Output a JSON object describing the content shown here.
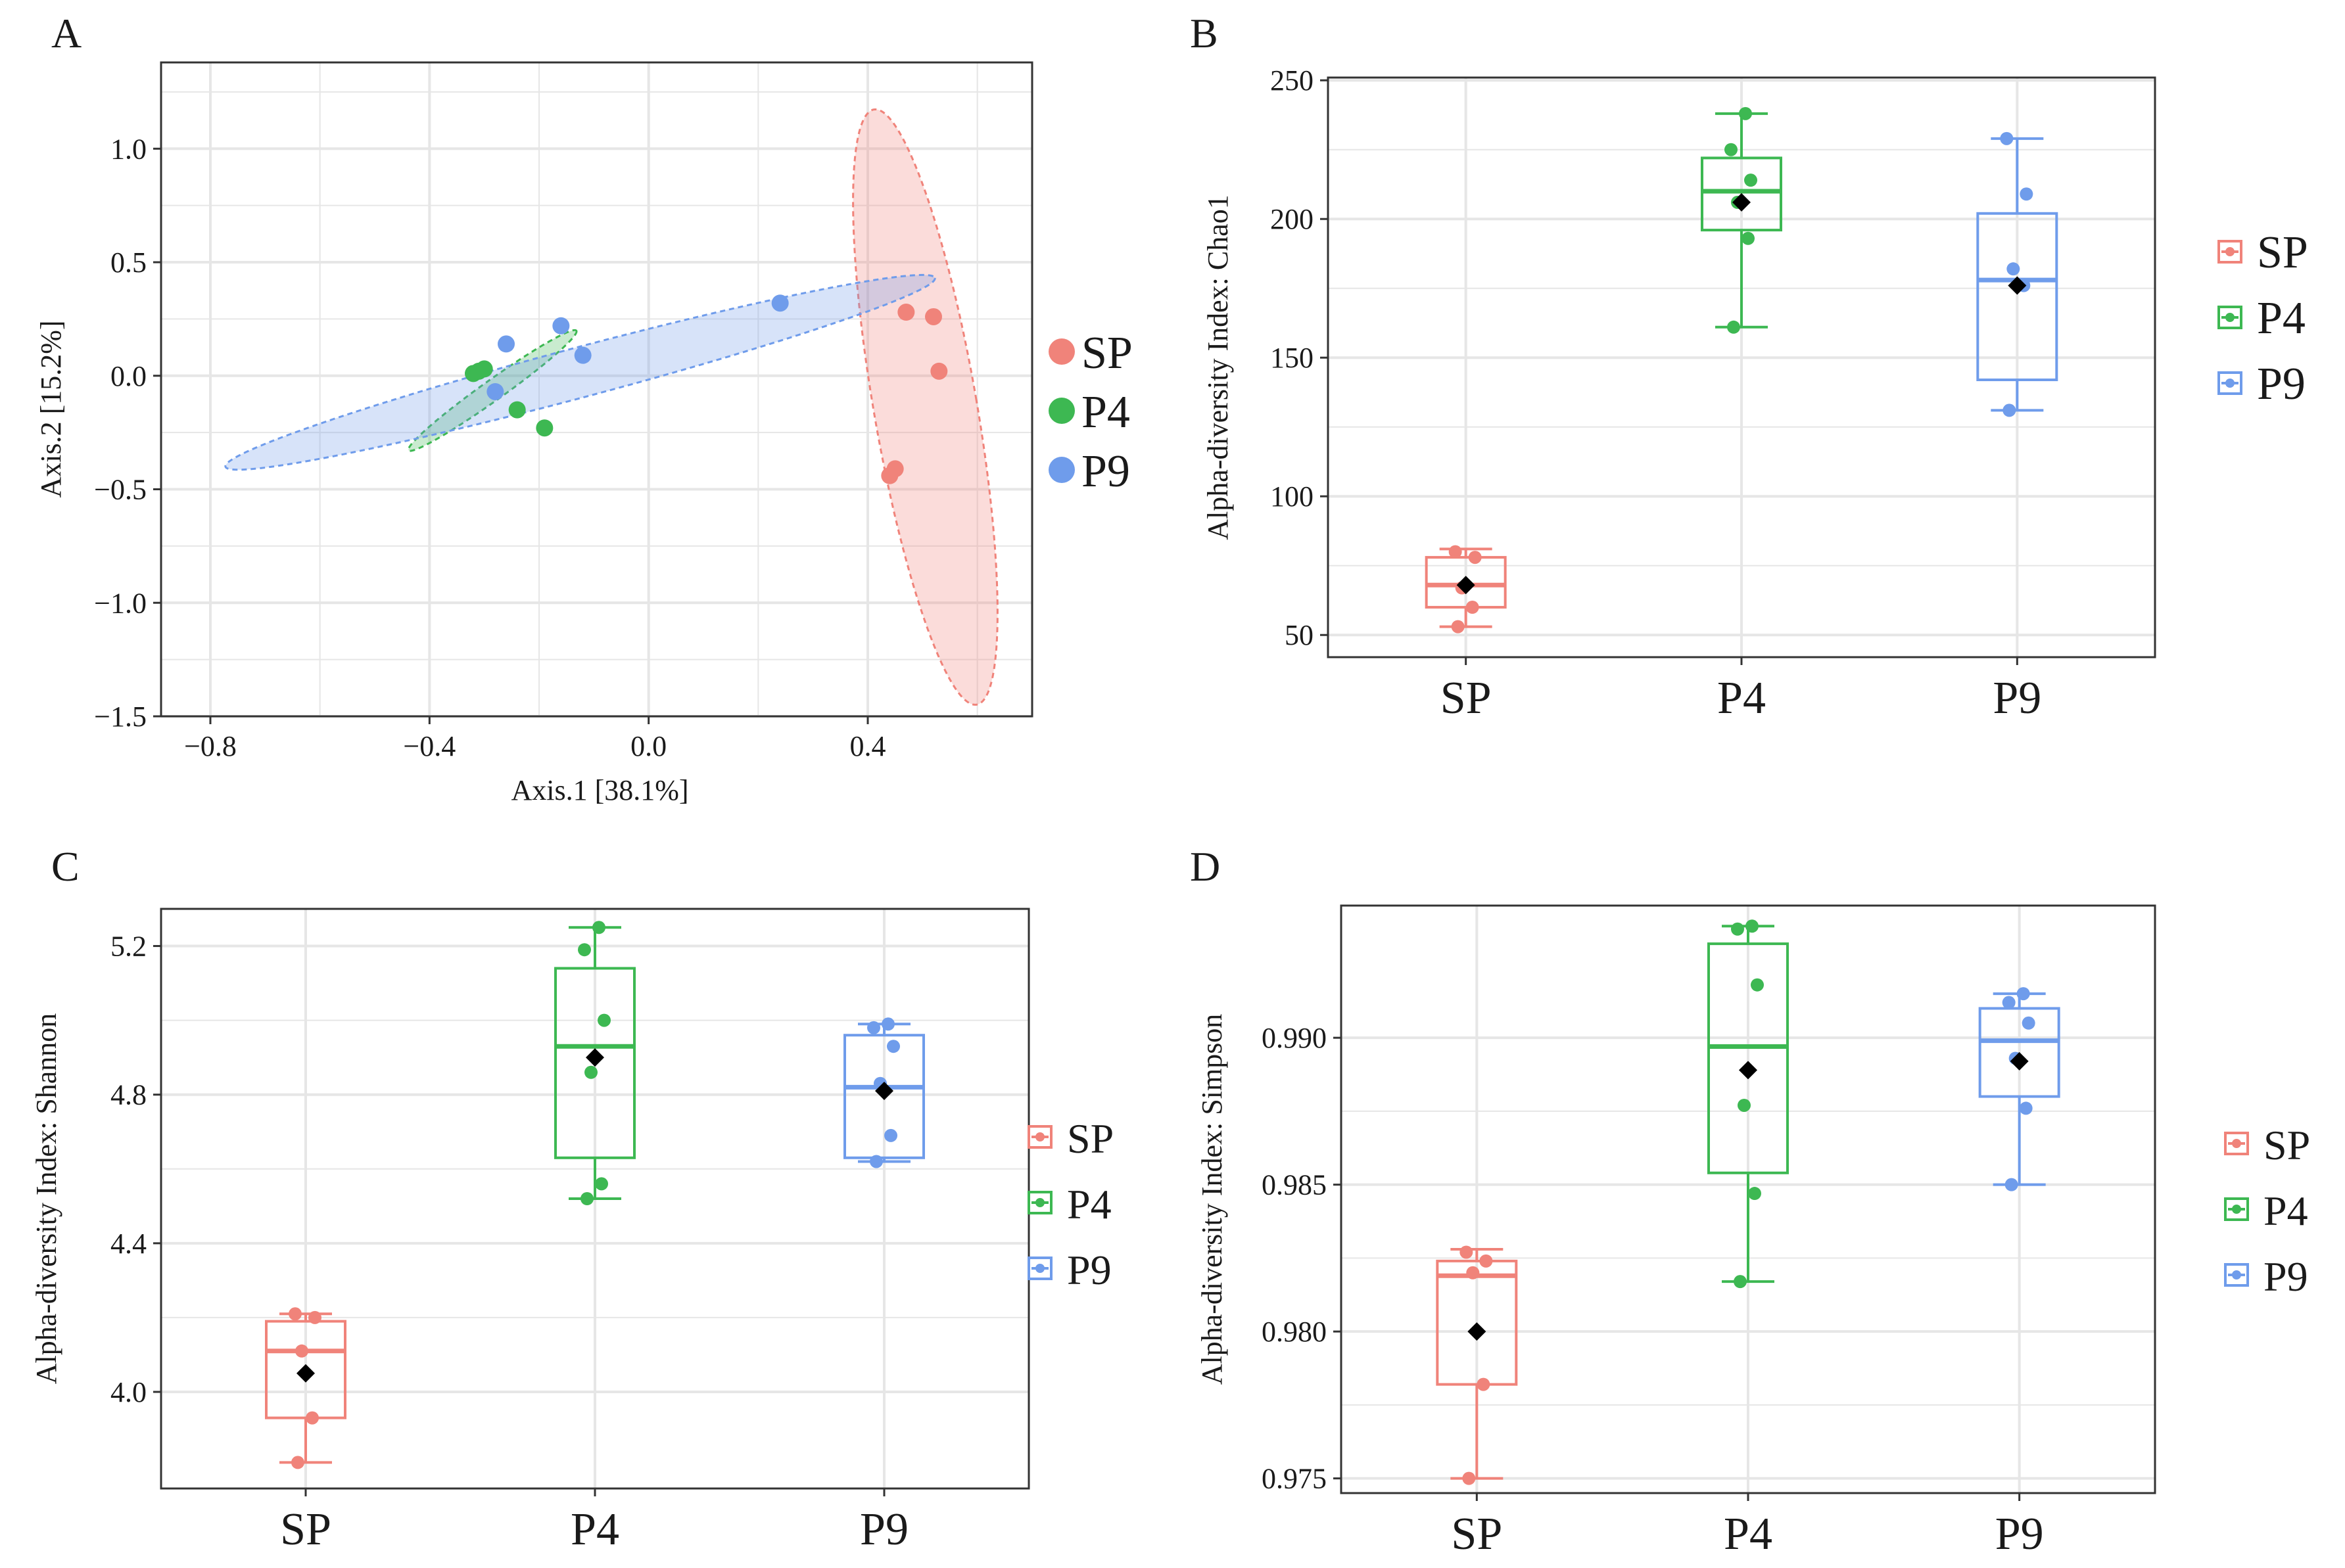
{
  "figure": {
    "background": "#ffffff",
    "grid_color": "#e6e6e6",
    "frame_color": "#333333"
  },
  "groups": [
    {
      "name": "SP",
      "color": "#F0837A"
    },
    {
      "name": "P4",
      "color": "#3DB852"
    },
    {
      "name": "P9",
      "color": "#6F9CEB"
    }
  ],
  "chart_data": [
    {
      "panel": "A",
      "type": "scatter",
      "title": "",
      "xlabel": "Axis.1  [38.1%]",
      "ylabel": "Axis.2  [15.2%]",
      "xlim": [
        -0.89,
        0.7
      ],
      "ylim": [
        -1.5,
        1.38
      ],
      "xticks": [
        -0.8,
        -0.4,
        0.0,
        0.4
      ],
      "xtick_labels": [
        "−0.8",
        "−0.4",
        "0.0",
        "0.4"
      ],
      "yticks": [
        1.0,
        0.5,
        0.0,
        -0.5,
        -1.0,
        -1.5
      ],
      "ytick_labels": [
        "1.0",
        "0.5",
        "0.0",
        "−0.5",
        "−1.0",
        "−1.5"
      ],
      "legend": [
        "SP",
        "P4",
        "P9"
      ],
      "legend_position": "right",
      "series": [
        {
          "name": "SP",
          "points": [
            [
              0.47,
              0.28
            ],
            [
              0.52,
              0.26
            ],
            [
              0.53,
              0.02
            ],
            [
              0.45,
              -0.41
            ],
            [
              0.44,
              -0.44
            ]
          ]
        },
        {
          "name": "P4",
          "points": [
            [
              -0.32,
              0.01
            ],
            [
              -0.31,
              0.02
            ],
            [
              -0.3,
              0.03
            ],
            [
              -0.24,
              -0.15
            ],
            [
              -0.19,
              -0.23
            ]
          ]
        },
        {
          "name": "P9",
          "points": [
            [
              0.24,
              0.32
            ],
            [
              -0.16,
              0.22
            ],
            [
              -0.26,
              0.14
            ],
            [
              -0.12,
              0.09
            ],
            [
              -0.28,
              -0.07
            ]
          ]
        }
      ],
      "ellipses": [
        {
          "name": "SP",
          "center": [
            0.505,
            -0.138
          ],
          "semi_axes": [
            0.094,
            1.33
          ],
          "rotation_deg": -9.8
        },
        {
          "name": "P4",
          "center": [
            -0.285,
            -0.065
          ],
          "semi_axes": [
            0.188,
            0.045
          ],
          "rotation_deg": -35.5
        },
        {
          "name": "P9",
          "center": [
            -0.125,
            0.015
          ],
          "semi_axes": [
            0.67,
            0.11
          ],
          "rotation_deg": -14.9
        }
      ]
    },
    {
      "panel": "B",
      "type": "box",
      "ylabel": "Alpha-diversity Index: Chao1",
      "categories": [
        "SP",
        "P4",
        "P9"
      ],
      "ylim": [
        42,
        251
      ],
      "yticks": [
        50,
        100,
        150,
        200,
        250
      ],
      "ytick_labels": [
        "50",
        "100",
        "150",
        "200",
        "250"
      ],
      "legend": [
        "SP",
        "P4",
        "P9"
      ],
      "legend_position": "right",
      "series": [
        {
          "name": "SP",
          "q1": 60,
          "median": 68,
          "q3": 78,
          "whisker_low": 53,
          "whisker_high": 81,
          "mean": 68,
          "points": [
            53,
            60,
            67,
            78,
            80
          ]
        },
        {
          "name": "P4",
          "q1": 196,
          "median": 210,
          "q3": 222,
          "whisker_low": 161,
          "whisker_high": 238,
          "mean": 206,
          "points": [
            161,
            193,
            206,
            214,
            225,
            238
          ]
        },
        {
          "name": "P9",
          "q1": 142,
          "median": 178,
          "q3": 202,
          "whisker_low": 131,
          "whisker_high": 229,
          "mean": 176,
          "points": [
            131,
            176,
            182,
            209,
            229
          ]
        }
      ]
    },
    {
      "panel": "C",
      "type": "box",
      "ylabel": "Alpha-diversity Index: Shannon",
      "categories": [
        "SP",
        "P4",
        "P9"
      ],
      "ylim": [
        3.74,
        5.3
      ],
      "yticks": [
        4.0,
        4.4,
        4.8,
        5.2
      ],
      "ytick_labels": [
        "4.0",
        "4.4",
        "4.8",
        "5.2"
      ],
      "legend": [
        "SP",
        "P4",
        "P9"
      ],
      "legend_position": "right",
      "series": [
        {
          "name": "SP",
          "q1": 3.93,
          "median": 4.11,
          "q3": 4.19,
          "whisker_low": 3.81,
          "whisker_high": 4.21,
          "mean": 4.05,
          "points": [
            3.81,
            3.93,
            4.11,
            4.2,
            4.21
          ]
        },
        {
          "name": "P4",
          "q1": 4.63,
          "median": 4.93,
          "q3": 5.14,
          "whisker_low": 4.52,
          "whisker_high": 5.25,
          "mean": 4.9,
          "points": [
            4.52,
            4.56,
            4.86,
            5.0,
            5.19,
            5.25
          ]
        },
        {
          "name": "P9",
          "q1": 4.63,
          "median": 4.82,
          "q3": 4.96,
          "whisker_low": 4.62,
          "whisker_high": 4.99,
          "mean": 4.81,
          "points": [
            4.62,
            4.69,
            4.83,
            4.93,
            4.98,
            4.99
          ]
        }
      ]
    },
    {
      "panel": "D",
      "type": "box",
      "ylabel": "Alpha-diversity Index: Simpson",
      "categories": [
        "SP",
        "P4",
        "P9"
      ],
      "ylim": [
        0.9745,
        0.9945
      ],
      "yticks": [
        0.975,
        0.98,
        0.985,
        0.99
      ],
      "ytick_labels": [
        "0.975",
        "0.980",
        "0.985",
        "0.990"
      ],
      "legend": [
        "SP",
        "P4",
        "P9"
      ],
      "legend_position": "right",
      "series": [
        {
          "name": "SP",
          "q1": 0.9782,
          "median": 0.9819,
          "q3": 0.9824,
          "whisker_low": 0.975,
          "whisker_high": 0.9828,
          "mean": 0.98,
          "points": [
            0.975,
            0.9782,
            0.982,
            0.9824,
            0.9827
          ]
        },
        {
          "name": "P4",
          "q1": 0.9854,
          "median": 0.9897,
          "q3": 0.9932,
          "whisker_low": 0.9817,
          "whisker_high": 0.9938,
          "mean": 0.9889,
          "points": [
            0.9817,
            0.9847,
            0.9877,
            0.9918,
            0.9937,
            0.9938
          ]
        },
        {
          "name": "P9",
          "q1": 0.988,
          "median": 0.9899,
          "q3": 0.991,
          "whisker_low": 0.985,
          "whisker_high": 0.9915,
          "mean": 0.9892,
          "points": [
            0.985,
            0.9876,
            0.9893,
            0.9905,
            0.9912,
            0.9915
          ]
        }
      ]
    }
  ]
}
